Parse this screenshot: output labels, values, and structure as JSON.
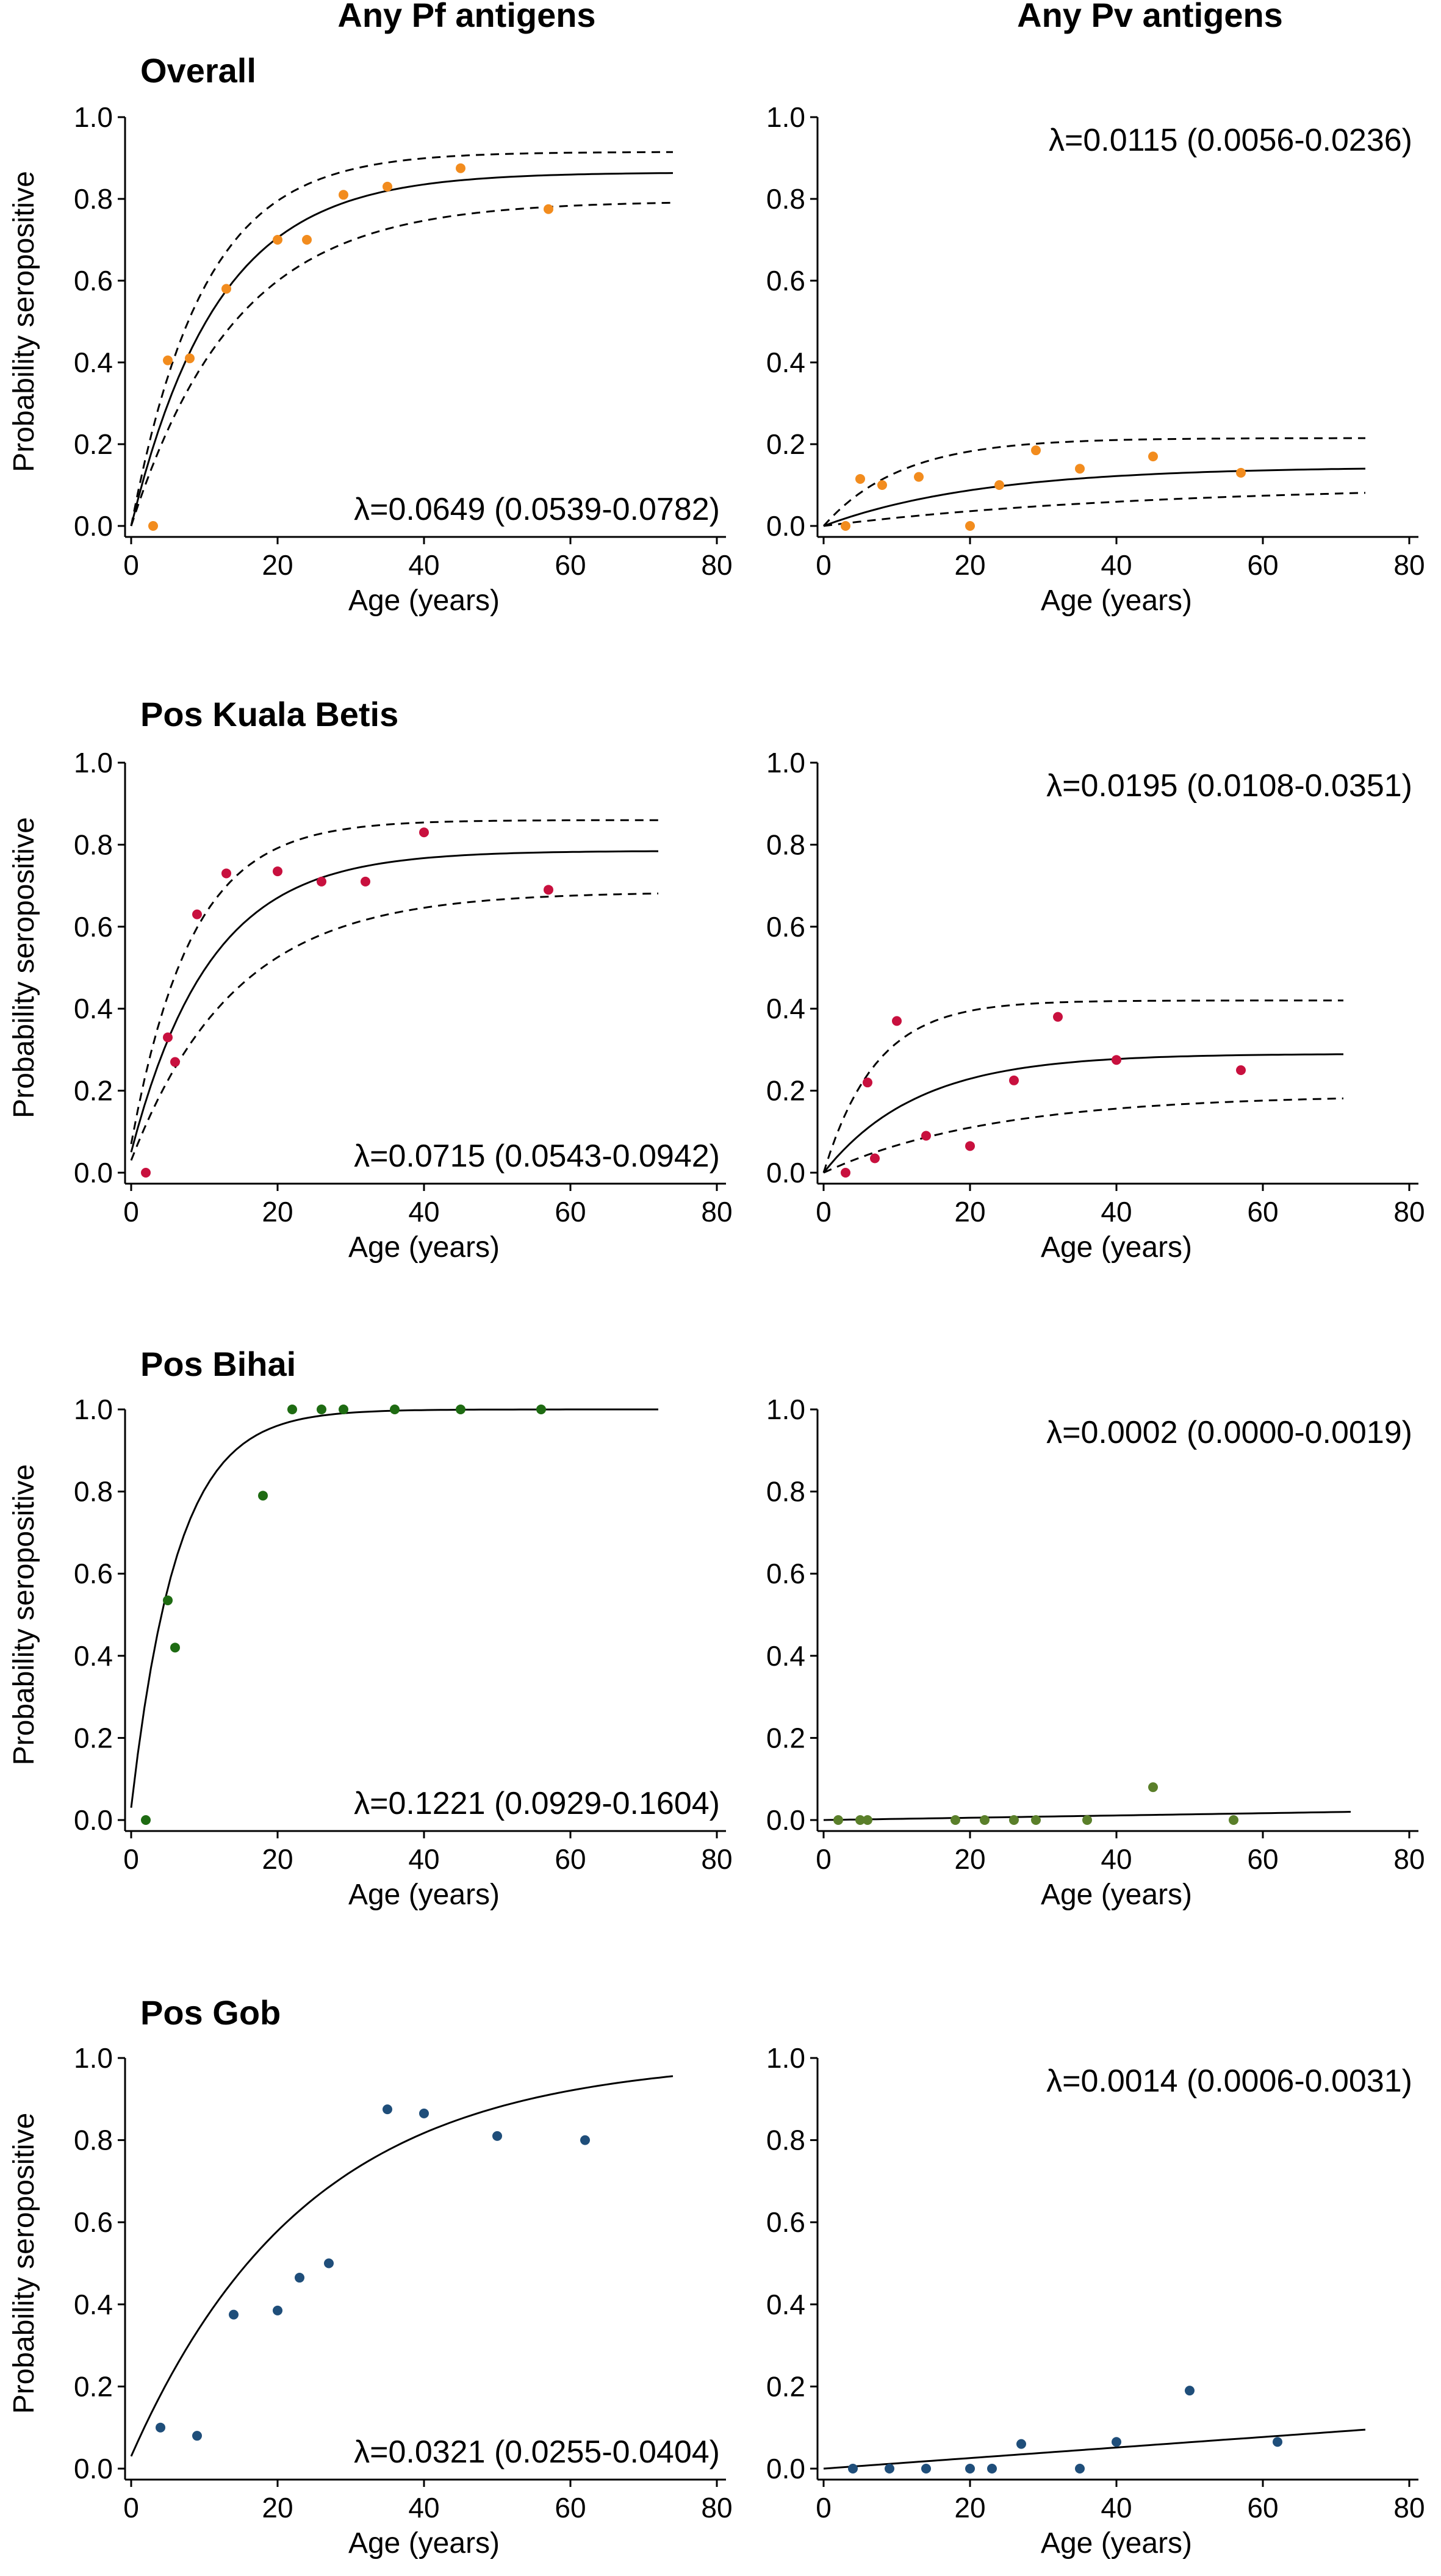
{
  "figure": {
    "column_titles": [
      "Any Pf antigens",
      "Any Pv antigens"
    ],
    "row_titles": [
      "Overall",
      "Pos Kuala Betis",
      "Pos Bihai",
      "Pos Gob"
    ],
    "colors": {
      "overall": "#F28C1E",
      "kuala_betis": "#C8103E",
      "bihai": "#1E6B12",
      "bihai_pv": "#5A7F2A",
      "gob": "#1F4E7A"
    }
  },
  "chart_data": [
    {
      "id": "overall_pf",
      "type": "scatter",
      "title": "Overall",
      "series_name": "Any Pf antigens",
      "xlabel": "Age (years)",
      "ylabel": "Probability seropositive",
      "xlim": [
        0,
        80
      ],
      "ylim": [
        0,
        1
      ],
      "xticks": [
        "0",
        "20",
        "40",
        "60",
        "80"
      ],
      "yticks": [
        "0.0",
        "0.2",
        "0.4",
        "0.6",
        "0.8",
        "1.0"
      ],
      "points": {
        "x": [
          3,
          5,
          8,
          13,
          20,
          24,
          29,
          35,
          45,
          57
        ],
        "y": [
          0.0,
          0.405,
          0.41,
          0.58,
          0.7,
          0.7,
          0.81,
          0.83,
          0.875,
          0.775
        ]
      },
      "fit": {
        "lambda": 0.0649,
        "plateau": 0.865,
        "x_max": 74
      },
      "ci": {
        "lower": {
          "lambda": 0.0539,
          "plateau": 0.795
        },
        "upper": {
          "lambda": 0.0782,
          "plateau": 0.915
        }
      },
      "lambda_label": "λ=0.0649 (0.0539-0.0782)",
      "lambda_position": "bottom-right",
      "color": "#F28C1E"
    },
    {
      "id": "overall_pv",
      "type": "scatter",
      "title": "",
      "series_name": "Any Pv antigens",
      "xlabel": "Age (years)",
      "ylabel": "",
      "xlim": [
        0,
        80
      ],
      "ylim": [
        0,
        1
      ],
      "xticks": [
        "0",
        "20",
        "40",
        "60",
        "80"
      ],
      "yticks": [
        "0.0",
        "0.2",
        "0.4",
        "0.6",
        "0.8",
        "1.0"
      ],
      "points": {
        "x": [
          3,
          5,
          8,
          13,
          20,
          24,
          29,
          35,
          45,
          57
        ],
        "y": [
          0.0,
          0.115,
          0.1,
          0.12,
          0.0,
          0.1,
          0.185,
          0.14,
          0.17,
          0.13
        ]
      },
      "fit": {
        "lambda": 0.0115,
        "plateau": 0.145,
        "x_max": 74,
        "fast": true
      },
      "ci": {
        "lower": {
          "lambda": 0.0056,
          "plateau": 0.1
        },
        "upper": {
          "lambda": 0.0236,
          "plateau": 0.215
        }
      },
      "lambda_label": "λ=0.0115 (0.0056-0.0236)",
      "lambda_position": "top-right",
      "color": "#F28C1E"
    },
    {
      "id": "kuala_betis_pf",
      "type": "scatter",
      "title": "Pos Kuala Betis",
      "series_name": "Any Pf antigens",
      "xlabel": "Age (years)",
      "ylabel": "Probability seropositive",
      "xlim": [
        0,
        80
      ],
      "ylim": [
        0,
        1
      ],
      "xticks": [
        "0",
        "20",
        "40",
        "60",
        "80"
      ],
      "yticks": [
        "0.0",
        "0.2",
        "0.4",
        "0.6",
        "0.8",
        "1.0"
      ],
      "points": {
        "x": [
          2,
          5,
          6,
          9,
          13,
          20,
          26,
          32,
          40,
          57
        ],
        "y": [
          0.0,
          0.33,
          0.27,
          0.63,
          0.73,
          0.735,
          0.71,
          0.71,
          0.83,
          0.69
        ]
      },
      "fit": {
        "lambda": 0.0715,
        "plateau": 0.785,
        "x_max": 72,
        "y0": 0.05
      },
      "ci": {
        "lower": {
          "lambda": 0.0543,
          "plateau": 0.685,
          "y0": 0.03
        },
        "upper": {
          "lambda": 0.0942,
          "plateau": 0.86,
          "y0": 0.07
        }
      },
      "lambda_label": "λ=0.0715 (0.0543-0.0942)",
      "lambda_position": "bottom-right",
      "color": "#C8103E"
    },
    {
      "id": "kuala_betis_pv",
      "type": "scatter",
      "title": "",
      "series_name": "Any Pv antigens",
      "xlabel": "Age (years)",
      "ylabel": "",
      "xlim": [
        0,
        80
      ],
      "ylim": [
        0,
        1
      ],
      "xticks": [
        "0",
        "20",
        "40",
        "60",
        "80"
      ],
      "yticks": [
        "0.0",
        "0.2",
        "0.4",
        "0.6",
        "0.8",
        "1.0"
      ],
      "points": {
        "x": [
          3,
          6,
          7,
          10,
          14,
          20,
          26,
          32,
          40,
          57
        ],
        "y": [
          0.0,
          0.22,
          0.035,
          0.37,
          0.09,
          0.065,
          0.225,
          0.38,
          0.275,
          0.25
        ]
      },
      "fit": {
        "lambda": 0.0195,
        "plateau": 0.29,
        "x_max": 71,
        "fast": true
      },
      "ci": {
        "lower": {
          "lambda": 0.0108,
          "plateau": 0.19
        },
        "upper": {
          "lambda": 0.0351,
          "plateau": 0.42
        }
      },
      "lambda_label": "λ=0.0195 (0.0108-0.0351)",
      "lambda_position": "top-right",
      "color": "#C8103E"
    },
    {
      "id": "bihai_pf",
      "type": "scatter",
      "title": "Pos Bihai",
      "series_name": "Any Pf antigens",
      "xlabel": "Age (years)",
      "ylabel": "Probability seropositive",
      "xlim": [
        0,
        80
      ],
      "ylim": [
        0,
        1
      ],
      "xticks": [
        "0",
        "20",
        "40",
        "60",
        "80"
      ],
      "yticks": [
        "0.0",
        "0.2",
        "0.4",
        "0.6",
        "0.8",
        "1.0"
      ],
      "points": {
        "x": [
          2,
          5,
          6,
          18,
          22,
          26,
          29,
          36,
          45,
          56
        ],
        "y": [
          0.0,
          0.535,
          0.42,
          0.79,
          1.0,
          1.0,
          1.0,
          1.0,
          1.0,
          1.0
        ]
      },
      "fit": {
        "lambda": 0.1221,
        "plateau": 1.0,
        "x_max": 72,
        "y0": 0.03,
        "k": 0.16
      },
      "lambda_label": "λ=0.1221 (0.0929-0.1604)",
      "lambda_position": "bottom-right",
      "color": "#1E6B12"
    },
    {
      "id": "bihai_pv",
      "type": "scatter",
      "title": "",
      "series_name": "Any Pv antigens",
      "xlabel": "Age (years)",
      "ylabel": "",
      "xlim": [
        0,
        80
      ],
      "ylim": [
        0,
        1
      ],
      "xticks": [
        "0",
        "20",
        "40",
        "60",
        "80"
      ],
      "yticks": [
        "0.0",
        "0.2",
        "0.4",
        "0.6",
        "0.8",
        "1.0"
      ],
      "points": {
        "x": [
          2,
          5,
          6,
          18,
          22,
          26,
          29,
          36,
          45,
          56
        ],
        "y": [
          0.0,
          0.0,
          0.0,
          0.0,
          0.0,
          0.0,
          0.0,
          0.0,
          0.08,
          0.0
        ]
      },
      "fit": {
        "lambda": 0.0002,
        "linear": [
          0.0,
          0.02
        ],
        "x_max": 72
      },
      "lambda_label": "λ=0.0002 (0.0000-0.0019)",
      "lambda_position": "top-right",
      "color": "#5A7F2A"
    },
    {
      "id": "gob_pf",
      "type": "scatter",
      "title": "Pos Gob",
      "series_name": "Any Pf antigens",
      "xlabel": "Age (years)",
      "ylabel": "Probability seropositive",
      "xlim": [
        0,
        80
      ],
      "ylim": [
        0,
        1
      ],
      "xticks": [
        "0",
        "20",
        "40",
        "60",
        "80"
      ],
      "yticks": [
        "0.0",
        "0.2",
        "0.4",
        "0.6",
        "0.8",
        "1.0"
      ],
      "points": {
        "x": [
          4,
          9,
          14,
          20,
          23,
          27,
          35,
          40,
          50,
          62
        ],
        "y": [
          0.1,
          0.08,
          0.375,
          0.385,
          0.465,
          0.5,
          0.875,
          0.865,
          0.81,
          0.8
        ]
      },
      "fit": {
        "lambda": 0.0321,
        "plateau": 1.0,
        "x_max": 74,
        "y0": 0.03
      },
      "lambda_label": "λ=0.0321 (0.0255-0.0404)",
      "lambda_position": "bottom-right",
      "color": "#1F4E7A"
    },
    {
      "id": "gob_pv",
      "type": "scatter",
      "title": "",
      "series_name": "Any Pv antigens",
      "xlabel": "Age (years)",
      "ylabel": "",
      "xlim": [
        0,
        80
      ],
      "ylim": [
        0,
        1
      ],
      "xticks": [
        "0",
        "20",
        "40",
        "60",
        "80"
      ],
      "yticks": [
        "0.0",
        "0.2",
        "0.4",
        "0.6",
        "0.8",
        "1.0"
      ],
      "points": {
        "x": [
          4,
          9,
          14,
          20,
          23,
          27,
          35,
          40,
          50,
          62
        ],
        "y": [
          0.0,
          0.0,
          0.0,
          0.0,
          0.0,
          0.06,
          0.0,
          0.065,
          0.19,
          0.065
        ]
      },
      "fit": {
        "lambda": 0.0014,
        "linear": [
          0.0,
          0.095
        ],
        "x_max": 74
      },
      "lambda_label": "λ=0.0014 (0.0006-0.0031)",
      "lambda_position": "top-right",
      "color": "#1F4E7A"
    }
  ]
}
